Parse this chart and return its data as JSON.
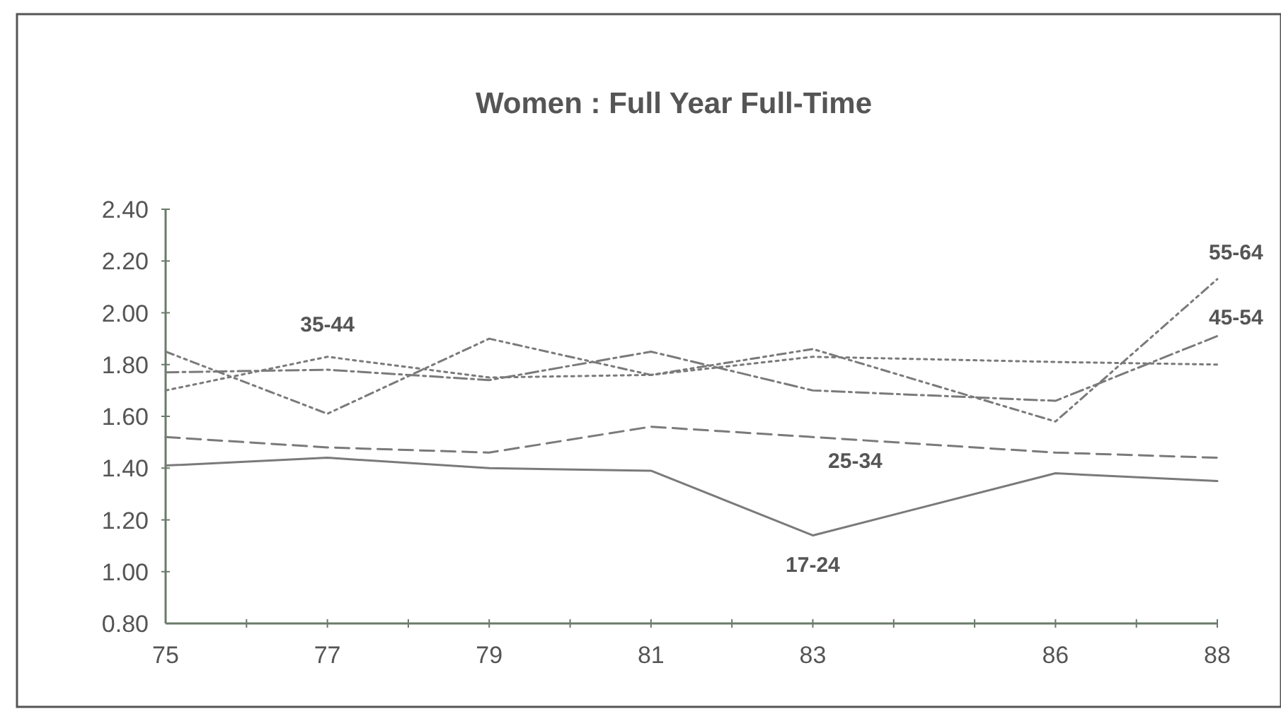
{
  "chart_data": {
    "type": "line",
    "title": "Women : Full Year Full-Time",
    "x": [
      75,
      77,
      79,
      81,
      83,
      86,
      88
    ],
    "xlim": [
      75,
      88
    ],
    "xticks": [
      75,
      {
        "value": 76,
        "label": null
      },
      77,
      {
        "value": 78,
        "label": null
      },
      79,
      {
        "value": 80,
        "label": null
      },
      81,
      {
        "value": 82,
        "label": null
      },
      83,
      {
        "value": 84,
        "label": null
      },
      {
        "value": 85,
        "label": null
      },
      86,
      {
        "value": 87,
        "label": null
      },
      88
    ],
    "ylim": [
      0.8,
      2.4
    ],
    "yticks": [
      {
        "value": 0.8,
        "label": "0.80"
      },
      {
        "value": 1.0,
        "label": "1.00"
      },
      {
        "value": 1.2,
        "label": "1.20"
      },
      {
        "value": 1.4,
        "label": "1.40"
      },
      {
        "value": 1.6,
        "label": "1.60"
      },
      {
        "value": 1.8,
        "label": "1.80"
      },
      {
        "value": 2.0,
        "label": "2.00"
      },
      {
        "value": 2.2,
        "label": "2.20"
      },
      {
        "value": 2.4,
        "label": "2.40"
      }
    ],
    "grid": false,
    "series": [
      {
        "name": "17-24",
        "color": "#7a7a7a",
        "line_style": "solid",
        "values": [
          1.41,
          1.44,
          1.4,
          1.39,
          1.14,
          1.38,
          1.35
        ]
      },
      {
        "name": "25-34",
        "color": "#7a7a7a",
        "line_style": "dashed",
        "values": [
          1.52,
          1.48,
          1.46,
          1.56,
          1.52,
          1.46,
          1.44
        ]
      },
      {
        "name": "35-44",
        "color": "#7a7a7a",
        "line_style": "dotted",
        "values": [
          1.7,
          1.83,
          1.75,
          1.76,
          1.83,
          1.81,
          1.8
        ]
      },
      {
        "name": "45-54",
        "color": "#7a7a7a",
        "line_style": "dashed",
        "values": [
          1.77,
          1.78,
          1.74,
          1.85,
          1.7,
          1.66,
          1.91
        ]
      },
      {
        "name": "55-64",
        "color": "#7a7a7a",
        "line_style": "dotted",
        "values": [
          1.85,
          1.61,
          1.9,
          1.76,
          1.86,
          1.58,
          2.13
        ]
      }
    ]
  }
}
